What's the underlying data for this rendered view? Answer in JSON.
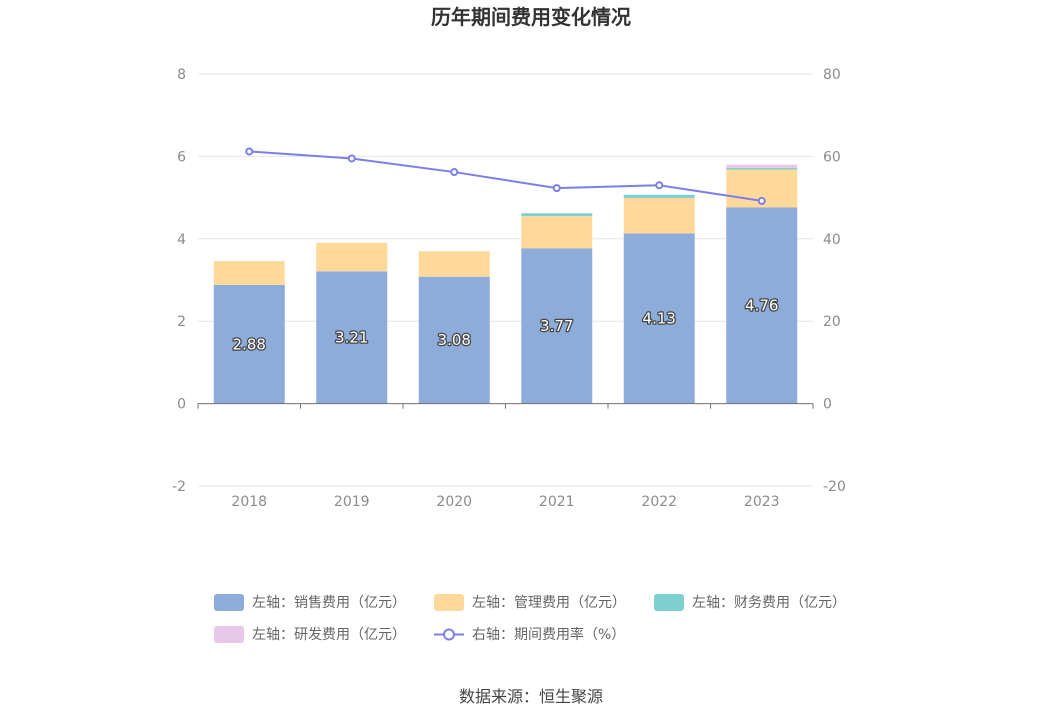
{
  "colors": {
    "sales": "#8eacd9",
    "admin": "#ffd99a",
    "finance": "#7fd1d1",
    "rd": "#e8c8e8",
    "rate": "#7b7fe8"
  },
  "legend": {
    "sales": "左轴：销售费用（亿元）",
    "admin": "左轴：管理费用（亿元）",
    "finance": "左轴：财务费用（亿元）",
    "rd": "左轴：研发费用（亿元）",
    "rate": "右轴：期间费用率（%）"
  },
  "source": "数据来源：恒生聚源",
  "chart_data": {
    "type": "bar",
    "title": "历年期间费用变化情况",
    "categories": [
      "2018",
      "2019",
      "2020",
      "2021",
      "2022",
      "2023"
    ],
    "left_axis": {
      "ylim": [
        -2,
        8
      ],
      "ticks": [
        "-2",
        "0",
        "2",
        "4",
        "6",
        "8"
      ]
    },
    "right_axis": {
      "ylim": [
        -20,
        80
      ],
      "ticks": [
        "-20",
        "0",
        "20",
        "40",
        "60",
        "80"
      ]
    },
    "grid": true,
    "legend_position": "bottom",
    "series": [
      {
        "name": "左轴：销售费用（亿元）",
        "axis": "left",
        "stack": true,
        "values": [
          2.88,
          3.21,
          3.08,
          3.77,
          4.13,
          4.76
        ],
        "labels": [
          "2.88",
          "3.21",
          "3.08",
          "3.77",
          "4.13",
          "4.76"
        ]
      },
      {
        "name": "左轴：管理费用（亿元）",
        "axis": "left",
        "stack": true,
        "values": [
          0.58,
          0.69,
          0.62,
          0.78,
          0.86,
          0.92
        ]
      },
      {
        "name": "左轴：财务费用（亿元）",
        "axis": "left",
        "stack": true,
        "values": [
          0.0,
          0.0,
          0.0,
          0.07,
          0.08,
          0.04
        ]
      },
      {
        "name": "左轴：研发费用（亿元）",
        "axis": "left",
        "stack": true,
        "values": [
          0.0,
          0.0,
          0.0,
          0.0,
          0.0,
          0.08
        ]
      },
      {
        "name": "右轴：期间费用率（%）",
        "type": "line",
        "axis": "right",
        "values": [
          61.2,
          59.5,
          56.2,
          52.3,
          53.0,
          49.2
        ]
      }
    ]
  }
}
